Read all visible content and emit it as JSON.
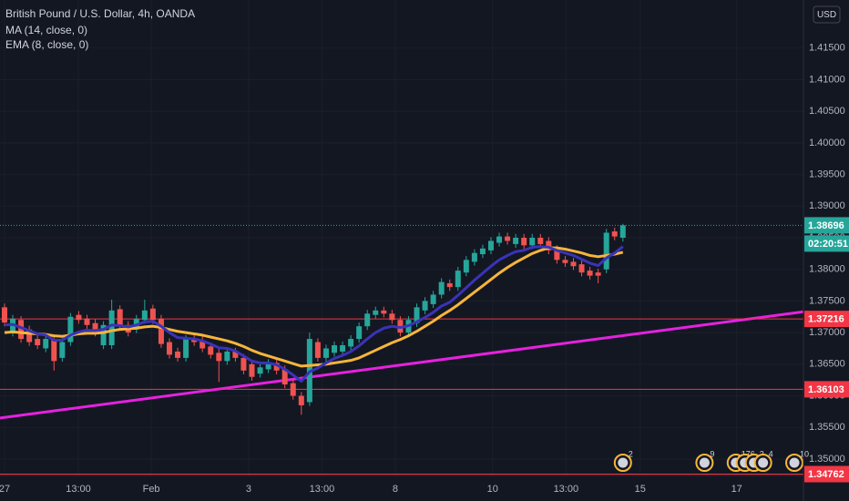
{
  "chart_data": {
    "type": "candlestick",
    "title": "British Pound / U.S. Dollar, 4h, OANDA",
    "currency": "USD",
    "legend": "top-left",
    "grid": true,
    "up_color": "#26a69a",
    "down_color": "#ef5350",
    "x": [
      0,
      1,
      2,
      3,
      4,
      5,
      6,
      7,
      8,
      9,
      10,
      11,
      12,
      13,
      14,
      15,
      16,
      17,
      18,
      19,
      20,
      21,
      22,
      23,
      24,
      25,
      26,
      27,
      28,
      29,
      30,
      31,
      32,
      33,
      34,
      35,
      36,
      37,
      38,
      39,
      40,
      41,
      42,
      43,
      44,
      45,
      46,
      47,
      48,
      49,
      50,
      51,
      52,
      53,
      54,
      55,
      56,
      57,
      58,
      59,
      60,
      61,
      62,
      63,
      64,
      65,
      66,
      67,
      68,
      69,
      70,
      71,
      72,
      73,
      74,
      75
    ],
    "open": [
      1.374,
      1.37,
      1.372,
      1.3705,
      1.369,
      1.3675,
      1.369,
      1.366,
      1.3685,
      1.3728,
      1.3722,
      1.3715,
      1.368,
      1.368,
      1.3737,
      1.3712,
      1.3705,
      1.372,
      1.3738,
      1.3722,
      1.3685,
      1.367,
      1.366,
      1.369,
      1.3688,
      1.3678,
      1.3668,
      1.3655,
      1.367,
      1.366,
      1.365,
      1.3635,
      1.3642,
      1.3652,
      1.3642,
      1.362,
      1.36,
      1.359,
      1.3685,
      1.366,
      1.3668,
      1.367,
      1.3678,
      1.369,
      1.371,
      1.3728,
      1.3735,
      1.373,
      1.372,
      1.37,
      1.3715,
      1.3735,
      1.3745,
      1.376,
      1.3778,
      1.3772,
      1.3795,
      1.3812,
      1.3824,
      1.383,
      1.3842,
      1.3852,
      1.384,
      1.385,
      1.3838,
      1.385,
      1.3845,
      1.3832,
      1.3815,
      1.3812,
      1.3808,
      1.3798,
      1.3795,
      1.38,
      1.386,
      1.385
    ],
    "high": [
      1.3746,
      1.3728,
      1.3726,
      1.3711,
      1.3696,
      1.3696,
      1.3696,
      1.3691,
      1.3731,
      1.3734,
      1.3728,
      1.3721,
      1.3718,
      1.3752,
      1.3743,
      1.3718,
      1.3728,
      1.3752,
      1.3744,
      1.3728,
      1.3691,
      1.3676,
      1.3696,
      1.3696,
      1.3694,
      1.3684,
      1.3674,
      1.3676,
      1.3676,
      1.3666,
      1.3656,
      1.3651,
      1.3658,
      1.3658,
      1.3648,
      1.3626,
      1.3606,
      1.37,
      1.3691,
      1.3681,
      1.3686,
      1.3686,
      1.3696,
      1.3716,
      1.3736,
      1.3741,
      1.3741,
      1.3736,
      1.3726,
      1.3726,
      1.3746,
      1.3756,
      1.3766,
      1.3786,
      1.3784,
      1.3804,
      1.3821,
      1.3832,
      1.3839,
      1.3851,
      1.3858,
      1.3858,
      1.3856,
      1.3856,
      1.3856,
      1.3856,
      1.3851,
      1.3838,
      1.3821,
      1.3818,
      1.3814,
      1.3804,
      1.3801,
      1.3864,
      1.3866,
      1.3872
    ],
    "low": [
      1.371,
      1.3694,
      1.3684,
      1.3679,
      1.3674,
      1.3669,
      1.364,
      1.3654,
      1.3679,
      1.3714,
      1.3706,
      1.3694,
      1.3674,
      1.3674,
      1.3704,
      1.3694,
      1.3699,
      1.3714,
      1.3714,
      1.3676,
      1.3659,
      1.3654,
      1.3654,
      1.3679,
      1.3669,
      1.3659,
      1.3622,
      1.3649,
      1.3654,
      1.3634,
      1.3624,
      1.3629,
      1.3636,
      1.3634,
      1.3612,
      1.3594,
      1.357,
      1.3584,
      1.3654,
      1.3654,
      1.3662,
      1.3664,
      1.3672,
      1.3684,
      1.3704,
      1.3722,
      1.3724,
      1.3714,
      1.3694,
      1.3694,
      1.3709,
      1.3729,
      1.3739,
      1.3754,
      1.3766,
      1.3766,
      1.3789,
      1.3806,
      1.3818,
      1.3824,
      1.3836,
      1.3839,
      1.3834,
      1.3832,
      1.3832,
      1.3834,
      1.3824,
      1.3809,
      1.3804,
      1.3799,
      1.3789,
      1.3784,
      1.3778,
      1.3794,
      1.3846,
      1.3844
    ],
    "close": [
      1.3716,
      1.3722,
      1.369,
      1.3685,
      1.368,
      1.369,
      1.3655,
      1.3685,
      1.3725,
      1.372,
      1.3712,
      1.37,
      1.3712,
      1.3735,
      1.371,
      1.37,
      1.3722,
      1.3735,
      1.372,
      1.3682,
      1.3665,
      1.366,
      1.369,
      1.3685,
      1.3675,
      1.3665,
      1.3655,
      1.367,
      1.366,
      1.364,
      1.363,
      1.3645,
      1.3652,
      1.364,
      1.3618,
      1.36,
      1.3585,
      1.369,
      1.366,
      1.3675,
      1.368,
      1.368,
      1.369,
      1.371,
      1.373,
      1.3735,
      1.373,
      1.372,
      1.37,
      1.372,
      1.374,
      1.375,
      1.376,
      1.378,
      1.3772,
      1.3798,
      1.3815,
      1.3826,
      1.3833,
      1.3845,
      1.3852,
      1.3845,
      1.385,
      1.3838,
      1.385,
      1.384,
      1.383,
      1.3815,
      1.381,
      1.3805,
      1.3795,
      1.379,
      1.379,
      1.3858,
      1.3852,
      1.38696
    ],
    "series": [
      {
        "name": "MA (14, close, 0)",
        "color": "#f7b53b",
        "width": 3,
        "values": [
          1.37,
          1.3701,
          1.37,
          1.3699,
          1.3698,
          1.3697,
          1.3695,
          1.3694,
          1.3696,
          1.3698,
          1.3699,
          1.3699,
          1.37,
          1.3703,
          1.3705,
          1.3706,
          1.3707,
          1.3709,
          1.371,
          1.3708,
          1.3705,
          1.3702,
          1.37,
          1.3698,
          1.3696,
          1.3693,
          1.369,
          1.3687,
          1.3683,
          1.3678,
          1.3672,
          1.3667,
          1.3663,
          1.3659,
          1.3655,
          1.3651,
          1.3647,
          1.3648,
          1.3649,
          1.365,
          1.3652,
          1.3654,
          1.3656,
          1.366,
          1.3666,
          1.3672,
          1.3678,
          1.3684,
          1.3689,
          1.3695,
          1.3702,
          1.371,
          1.3718,
          1.3727,
          1.3735,
          1.3744,
          1.3754,
          1.3764,
          1.3774,
          1.3784,
          1.3794,
          1.3803,
          1.3811,
          1.3818,
          1.3825,
          1.383,
          1.3834,
          1.3834,
          1.3832,
          1.3829,
          1.3826,
          1.3822,
          1.382,
          1.3822,
          1.3824,
          1.3827
        ]
      },
      {
        "name": "EMA (8, close, 0)",
        "color": "#3a33b8",
        "width": 3,
        "values": [
          1.3712,
          1.3713,
          1.3708,
          1.3703,
          1.3698,
          1.3696,
          1.3688,
          1.3688,
          1.3696,
          1.3701,
          1.3704,
          1.3703,
          1.3705,
          1.3712,
          1.3711,
          1.3709,
          1.3712,
          1.3717,
          1.3718,
          1.371,
          1.37,
          1.3692,
          1.3691,
          1.369,
          1.3687,
          1.3682,
          1.3676,
          1.3675,
          1.3671,
          1.3663,
          1.3655,
          1.3652,
          1.3652,
          1.3649,
          1.3642,
          1.3633,
          1.3623,
          1.3638,
          1.3644,
          1.3652,
          1.3659,
          1.3664,
          1.367,
          1.3679,
          1.369,
          1.37,
          1.3707,
          1.371,
          1.3708,
          1.3711,
          1.3717,
          1.3724,
          1.3732,
          1.3742,
          1.3748,
          1.3759,
          1.3771,
          1.3783,
          1.3794,
          1.3805,
          1.3815,
          1.3822,
          1.3828,
          1.383,
          1.3835,
          1.3836,
          1.3835,
          1.383,
          1.3826,
          1.3822,
          1.3816,
          1.381,
          1.3806,
          1.3818,
          1.3826,
          1.3836
        ]
      }
    ],
    "xlim": [
      -0.55,
      96.9
    ],
    "xticks": [
      {
        "value": 0,
        "label": "27"
      },
      {
        "value": 8.95,
        "label": "13:00"
      },
      {
        "value": 17.8,
        "label": "Feb"
      },
      {
        "value": 29.6,
        "label": "3"
      },
      {
        "value": 38.5,
        "label": "13:00"
      },
      {
        "value": 47.4,
        "label": "8"
      },
      {
        "value": 59.2,
        "label": "10"
      },
      {
        "value": 68.1,
        "label": "13:00"
      },
      {
        "value": 77.1,
        "label": "15"
      },
      {
        "value": 88.8,
        "label": "17"
      }
    ],
    "ylim": [
      1.3474,
      1.4226
    ],
    "yticks": [
      {
        "value": 1.35,
        "label": "1.35000"
      },
      {
        "value": 1.355,
        "label": "1.35500"
      },
      {
        "value": 1.36,
        "label": "1.36000"
      },
      {
        "value": 1.365,
        "label": "1.36500"
      },
      {
        "value": 1.37,
        "label": "1.37000"
      },
      {
        "value": 1.375,
        "label": "1.37500"
      },
      {
        "value": 1.38,
        "label": "1.38000"
      },
      {
        "value": 1.385,
        "label": "1.38500"
      },
      {
        "value": 1.39,
        "label": "1.39000"
      },
      {
        "value": 1.395,
        "label": "1.39500"
      },
      {
        "value": 1.4,
        "label": "1.40000"
      },
      {
        "value": 1.405,
        "label": "1.40500"
      },
      {
        "value": 1.41,
        "label": "1.41000"
      },
      {
        "value": 1.415,
        "label": "1.41500"
      }
    ],
    "last_price": 1.38696,
    "countdown": "02:20:51",
    "levels": [
      {
        "value": 1.37216,
        "color": "#f23645"
      },
      {
        "value": 1.36103,
        "color": "#f23645"
      },
      {
        "value": 1.34762,
        "color": "#f23645"
      }
    ],
    "trendline": {
      "x": [
        -0.55,
        96.9
      ],
      "y": [
        1.35649,
        1.3733
      ],
      "color": "#e621e0"
    },
    "events": [
      {
        "x": 75,
        "label": "2"
      },
      {
        "x": 84.9,
        "label": "9"
      },
      {
        "x": 88.7,
        "label": "17"
      },
      {
        "x": 89.8,
        "label": "6"
      },
      {
        "x": 90.9,
        "label": "2"
      },
      {
        "x": 92,
        "label": "4"
      },
      {
        "x": 95.8,
        "label": "10"
      }
    ]
  }
}
